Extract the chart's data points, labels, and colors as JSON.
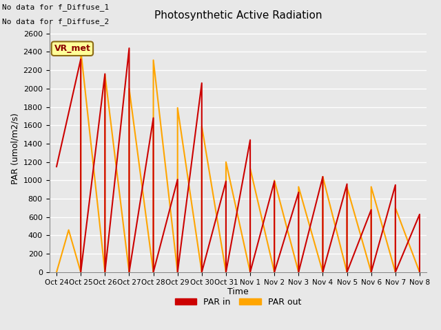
{
  "title": "Photosynthetic Active Radiation",
  "ylabel": "PAR (umol/m2/s)",
  "xlabel": "Time",
  "text_annotations": [
    "No data for f_Diffuse_1",
    "No data for f_Diffuse_2"
  ],
  "legend_box_label": "VR_met",
  "legend_box_color": "#FFFF99",
  "legend_box_border": "#8B6914",
  "background_color": "#E8E8E8",
  "plot_bg_color": "#E8E8E8",
  "grid_color": "white",
  "x_tick_labels": [
    "Oct 24",
    "Oct 25",
    "Oct 26",
    "Oct 27",
    "Oct 28",
    "Oct 29",
    "Oct 30",
    "Oct 31",
    "Nov 1",
    "Nov 2",
    "Nov 3",
    "Nov 4",
    "Nov 5",
    "Nov 6",
    "Nov 7",
    "Nov 8"
  ],
  "ylim": [
    0,
    2700
  ],
  "yticks": [
    0,
    200,
    400,
    600,
    800,
    1000,
    1200,
    1400,
    1600,
    1800,
    2000,
    2200,
    2400,
    2600
  ],
  "par_in_color": "#CC0000",
  "par_out_color": "#FFA500",
  "par_in_x": [
    0,
    1,
    1,
    2,
    2,
    3,
    3,
    4,
    4,
    5,
    5,
    6,
    6,
    7,
    7,
    8,
    8,
    9,
    9,
    10,
    10,
    11,
    11,
    12,
    12,
    13,
    13,
    14,
    14,
    15,
    15
  ],
  "par_in_y": [
    1150,
    2320,
    0,
    2160,
    0,
    2440,
    0,
    1680,
    0,
    1010,
    0,
    2060,
    0,
    990,
    0,
    1440,
    0,
    990,
    0,
    870,
    0,
    1040,
    0,
    960,
    0,
    680,
    0,
    950,
    0,
    630,
    0
  ],
  "par_out_x": [
    0,
    0.5,
    1,
    1,
    2,
    2,
    3,
    3,
    4,
    4,
    5,
    5,
    6,
    6,
    7,
    7,
    8,
    8,
    9,
    9,
    10,
    10,
    11,
    11,
    12,
    12,
    13,
    13,
    14,
    14,
    15
  ],
  "par_out_y": [
    0,
    460,
    0,
    2420,
    0,
    2150,
    0,
    2000,
    0,
    2310,
    0,
    1790,
    0,
    1590,
    0,
    1200,
    0,
    1130,
    0,
    1000,
    0,
    930,
    0,
    1040,
    0,
    925,
    0,
    930,
    0,
    700,
    0
  ]
}
